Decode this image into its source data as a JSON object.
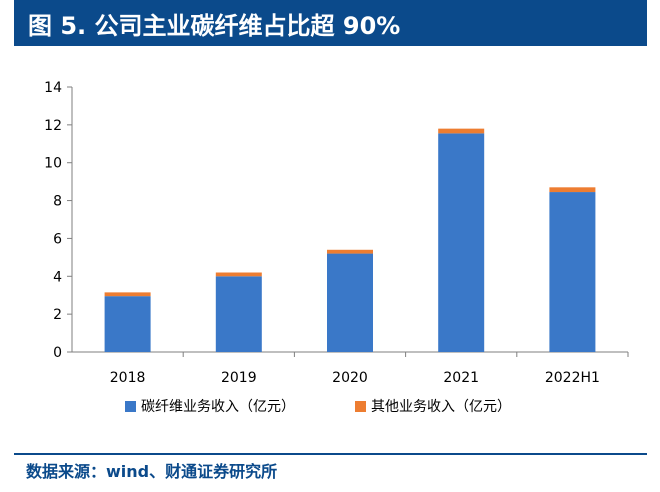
{
  "title": "图 5. 公司主业碳纤维占比超 90%",
  "source": "数据来源：wind、财通证券研究所",
  "colors": {
    "title_bg": "#0b4a8b",
    "series1": "#3a78c8",
    "series2": "#ed7d31"
  },
  "chart_data": {
    "type": "bar",
    "stacked": true,
    "categories": [
      "2018",
      "2019",
      "2020",
      "2021",
      "2022H1"
    ],
    "series": [
      {
        "name": "碳纤维业务收入（亿元）",
        "values": [
          2.95,
          4.0,
          5.2,
          11.55,
          8.45
        ],
        "color": "#3a78c8"
      },
      {
        "name": "其他业务收入（亿元）",
        "values": [
          0.2,
          0.2,
          0.2,
          0.25,
          0.25
        ],
        "color": "#ed7d31"
      }
    ],
    "ylim": [
      0,
      14
    ],
    "yticks": [
      "0",
      "2",
      "4",
      "6",
      "8",
      "10",
      "12",
      "14"
    ],
    "legend": "bottom",
    "grid": false
  }
}
